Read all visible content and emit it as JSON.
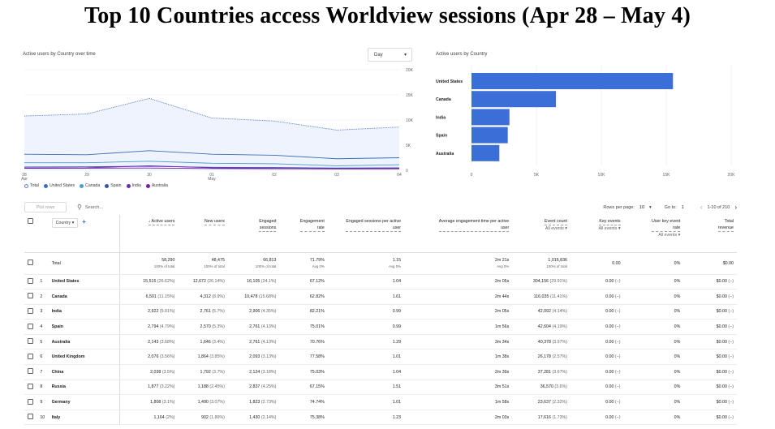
{
  "title": "Top 10 Countries access Worldview sessions (Apr 28 – May 4)",
  "line_chart": {
    "title": "Active users by Country over time",
    "granularity": "Day",
    "y_ticks": [
      "20K",
      "15K",
      "10K",
      "5K",
      "0"
    ],
    "x_ticks": [
      {
        "d": "28",
        "m": "Apr"
      },
      {
        "d": "29",
        "m": ""
      },
      {
        "d": "30",
        "m": ""
      },
      {
        "d": "01",
        "m": "May"
      },
      {
        "d": "02",
        "m": ""
      },
      {
        "d": "03",
        "m": ""
      },
      {
        "d": "04",
        "m": ""
      }
    ],
    "legend": [
      "Total",
      "United States",
      "Canada",
      "Spain",
      "India",
      "Australia"
    ],
    "colors": {
      "Total": "#5b7fd0",
      "United States": "#3c6fb5",
      "Canada": "#4b9bd1",
      "Spain": "#3a55a5",
      "India": "#6a2ab0",
      "Australia": "#7b1fa2"
    }
  },
  "bar_chart": {
    "title": "Active users by Country",
    "x_ticks": [
      "0",
      "5K",
      "10K",
      "15K",
      "20K"
    ],
    "bar_color": "#3b6ed6"
  },
  "chart_data": [
    {
      "type": "line",
      "title": "Active users by Country over time",
      "x": [
        "Apr 28",
        "Apr 29",
        "Apr 30",
        "May 1",
        "May 2",
        "May 3",
        "May 4"
      ],
      "ylim": [
        0,
        20000
      ],
      "series": [
        {
          "name": "Total",
          "values": [
            10800,
            11200,
            14300,
            10400,
            9800,
            8000,
            8600
          ]
        },
        {
          "name": "United States",
          "values": [
            3200,
            3100,
            3900,
            3200,
            3000,
            2300,
            2500
          ]
        },
        {
          "name": "Canada",
          "values": [
            1500,
            1500,
            1800,
            1400,
            1300,
            900,
            1100
          ]
        },
        {
          "name": "Spain",
          "values": [
            650,
            700,
            800,
            600,
            550,
            450,
            500
          ]
        },
        {
          "name": "India",
          "values": [
            450,
            500,
            900,
            500,
            400,
            350,
            400
          ]
        },
        {
          "name": "Australia",
          "values": [
            400,
            420,
            450,
            350,
            320,
            280,
            300
          ]
        }
      ]
    },
    {
      "type": "bar",
      "title": "Active users by Country",
      "categories": [
        "United States",
        "Canada",
        "India",
        "Spain",
        "Australia"
      ],
      "values": [
        15515,
        6501,
        2922,
        2794,
        2143
      ],
      "xlim": [
        0,
        20000
      ]
    }
  ],
  "table_toolbar": {
    "plot_rows": "Plot rows",
    "search_placeholder": "Search...",
    "rows_per_page_label": "Rows per page:",
    "rows_per_page": "10",
    "goto_label": "Go to:",
    "goto_value": "1",
    "range": "1-10 of 210"
  },
  "table": {
    "dimension": "Country",
    "headers": [
      {
        "label": "Active users",
        "sub": "",
        "sort": "↓"
      },
      {
        "label": "New users",
        "sub": ""
      },
      {
        "label": "Engaged\nsessions",
        "sub": ""
      },
      {
        "label": "Engagement\nrate",
        "sub": ""
      },
      {
        "label": "Engaged sessions per active\nuser",
        "sub": ""
      },
      {
        "label": "Average engagement time per active\nuser",
        "sub": ""
      },
      {
        "label": "Event count",
        "sub": "All events ▾"
      },
      {
        "label": "Key events",
        "sub": "All events ▾"
      },
      {
        "label": "User key event\nrate",
        "sub": "All events ▾"
      },
      {
        "label": "Total\nrevenue",
        "sub": ""
      }
    ],
    "total": {
      "label": "Total",
      "cells": [
        {
          "v": "58,290",
          "s": "100% of total"
        },
        {
          "v": "48,475",
          "s": "100% of total"
        },
        {
          "v": "66,813",
          "s": "100% of total"
        },
        {
          "v": "71.79%",
          "s": "Avg 0%"
        },
        {
          "v": "1.15",
          "s": "Avg 0%"
        },
        {
          "v": "2m 21s",
          "s": "Avg 0%"
        },
        {
          "v": "1,016,836",
          "s": "100% of total"
        },
        {
          "v": "0.00",
          "s": ""
        },
        {
          "v": "0%",
          "s": ""
        },
        {
          "v": "$0.00",
          "s": ""
        }
      ]
    },
    "rows": [
      {
        "n": "1",
        "country": "United States",
        "au": "15,515",
        "aup": "(26.62%)",
        "nu": "12,672",
        "nup": "(26.14%)",
        "es": "16,105",
        "esp": "(24.1%)",
        "er": "67.12%",
        "espu": "1.04",
        "aet": "2m 05s",
        "ec": "304,156",
        "ecp": "(29.91%)",
        "ke": "0.00",
        "kep": "(−)",
        "ukr": "0%",
        "tr": "$0.00",
        "trp": "(−)"
      },
      {
        "n": "2",
        "country": "Canada",
        "au": "6,501",
        "aup": "(11.15%)",
        "nu": "4,312",
        "nup": "(8.9%)",
        "es": "10,478",
        "esp": "(15.68%)",
        "er": "62.82%",
        "espu": "1.61",
        "aet": "2m 44s",
        "ec": "116,035",
        "ecp": "(11.41%)",
        "ke": "0.00",
        "kep": "(−)",
        "ukr": "0%",
        "tr": "$0.00",
        "trp": "(−)"
      },
      {
        "n": "3",
        "country": "India",
        "au": "2,922",
        "aup": "(5.01%)",
        "nu": "2,761",
        "nup": "(5.7%)",
        "es": "2,906",
        "esp": "(4.35%)",
        "er": "82.21%",
        "espu": "0.99",
        "aet": "2m 05s",
        "ec": "42,092",
        "ecp": "(4.14%)",
        "ke": "0.00",
        "kep": "(−)",
        "ukr": "0%",
        "tr": "$0.00",
        "trp": "(−)"
      },
      {
        "n": "4",
        "country": "Spain",
        "au": "2,794",
        "aup": "(4.79%)",
        "nu": "2,570",
        "nup": "(5.3%)",
        "es": "2,761",
        "esp": "(4.13%)",
        "er": "75.01%",
        "espu": "0.99",
        "aet": "1m 56s",
        "ec": "42,604",
        "ecp": "(4.19%)",
        "ke": "0.00",
        "kep": "(−)",
        "ukr": "0%",
        "tr": "$0.00",
        "trp": "(−)"
      },
      {
        "n": "5",
        "country": "Australia",
        "au": "2,143",
        "aup": "(3.68%)",
        "nu": "1,646",
        "nup": "(3.4%)",
        "es": "2,761",
        "esp": "(4.13%)",
        "er": "70.76%",
        "espu": "1.29",
        "aet": "3m 34s",
        "ec": "40,378",
        "ecp": "(3.97%)",
        "ke": "0.00",
        "kep": "(−)",
        "ukr": "0%",
        "tr": "$0.00",
        "trp": "(−)"
      },
      {
        "n": "6",
        "country": "United Kingdom",
        "au": "2,076",
        "aup": "(3.56%)",
        "nu": "1,864",
        "nup": "(3.85%)",
        "es": "2,093",
        "esp": "(3.13%)",
        "er": "77.58%",
        "espu": "1.01",
        "aet": "1m 38s",
        "ec": "26,178",
        "ecp": "(2.57%)",
        "ke": "0.00",
        "kep": "(−)",
        "ukr": "0%",
        "tr": "$0.00",
        "trp": "(−)"
      },
      {
        "n": "7",
        "country": "China",
        "au": "2,038",
        "aup": "(3.5%)",
        "nu": "1,792",
        "nup": "(3.7%)",
        "es": "2,124",
        "esp": "(3.18%)",
        "er": "75.03%",
        "espu": "1.04",
        "aet": "2m 39s",
        "ec": "37,281",
        "ecp": "(3.67%)",
        "ke": "0.00",
        "kep": "(−)",
        "ukr": "0%",
        "tr": "$0.00",
        "trp": "(−)"
      },
      {
        "n": "8",
        "country": "Russia",
        "au": "1,877",
        "aup": "(3.22%)",
        "nu": "1,188",
        "nup": "(2.45%)",
        "es": "2,837",
        "esp": "(4.25%)",
        "er": "67.15%",
        "espu": "1.51",
        "aet": "3m 51s",
        "ec": "36,570",
        "ecp": "(3.6%)",
        "ke": "0.00",
        "kep": "(−)",
        "ukr": "0%",
        "tr": "$0.00",
        "trp": "(−)"
      },
      {
        "n": "9",
        "country": "Germany",
        "au": "1,808",
        "aup": "(3.1%)",
        "nu": "1,490",
        "nup": "(3.07%)",
        "es": "1,823",
        "esp": "(2.73%)",
        "er": "74.74%",
        "espu": "1.01",
        "aet": "1m 58s",
        "ec": "23,637",
        "ecp": "(2.32%)",
        "ke": "0.00",
        "kep": "(−)",
        "ukr": "0%",
        "tr": "$0.00",
        "trp": "(−)"
      },
      {
        "n": "10",
        "country": "Italy",
        "au": "1,164",
        "aup": "(2%)",
        "nu": "902",
        "nup": "(1.86%)",
        "es": "1,430",
        "esp": "(2.14%)",
        "er": "75.38%",
        "espu": "1.23",
        "aet": "2m 03s",
        "ec": "17,616",
        "ecp": "(1.73%)",
        "ke": "0.00",
        "kep": "(−)",
        "ukr": "0%",
        "tr": "$0.00",
        "trp": "(−)"
      }
    ]
  }
}
